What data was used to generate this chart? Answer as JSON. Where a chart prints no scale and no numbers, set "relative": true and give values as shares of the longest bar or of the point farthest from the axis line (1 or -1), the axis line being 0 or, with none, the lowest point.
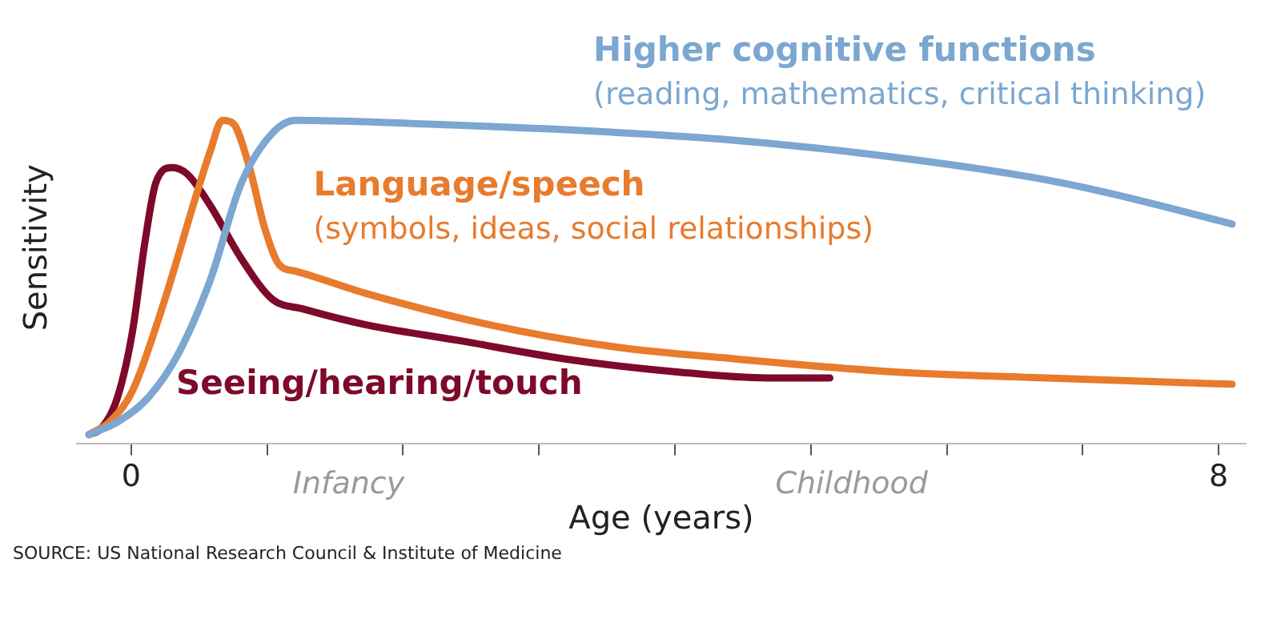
{
  "chart_data": {
    "type": "line",
    "relative": true,
    "xlabel": "Age (years)",
    "xlim": [
      -0.4,
      8.2
    ],
    "ylabel": "Sensitivity",
    "xticks": [
      0,
      {
        "value": 1,
        "label": null
      },
      {
        "value": 2,
        "label": null
      },
      {
        "value": 3,
        "label": null
      },
      {
        "value": 4,
        "label": null
      },
      {
        "value": 5,
        "label": null
      },
      {
        "value": 6,
        "label": null
      },
      {
        "value": 7,
        "label": null
      },
      8
    ],
    "grid": false,
    "legend": false,
    "marker": "none",
    "line_style": "solid",
    "tick_labels": "x",
    "series": [
      {
        "name": "Higher cognitive functions",
        "color": "#7ba7d0",
        "x": [
          -0.31,
          -0.1,
          0.13,
          0.35,
          0.58,
          0.81,
          1.04,
          1.21,
          2.06,
          3.2,
          4.34,
          5.48,
          6.61,
          7.18,
          8.1
        ],
        "values": [
          0,
          0.04,
          0.12,
          0.26,
          0.49,
          0.8,
          0.96,
          1,
          0.99,
          0.97,
          0.94,
          0.89,
          0.82,
          0.77,
          0.67
        ]
      },
      {
        "name": "Language/speech",
        "color": "#e87b2c",
        "x": [
          -0.31,
          -0.16,
          0.01,
          0.24,
          0.47,
          0.58,
          0.67,
          0.75,
          0.87,
          0.98,
          1.09,
          1.21,
          1.72,
          2.63,
          3.54,
          4.46,
          5.59,
          6.73,
          8.1
        ],
        "values": [
          0,
          0.04,
          0.14,
          0.42,
          0.75,
          0.9,
          1,
          0.99,
          0.85,
          0.66,
          0.54,
          0.52,
          0.45,
          0.35,
          0.28,
          0.24,
          0.2,
          0.18,
          0.16
        ]
      },
      {
        "name": "Seeing/hearing/touch",
        "color": "#7d0a2a",
        "x": [
          -0.31,
          -0.22,
          -0.1,
          0.01,
          0.1,
          0.18,
          0.3,
          0.41,
          0.58,
          0.81,
          1.04,
          1.26,
          1.72,
          2.4,
          3.2,
          4,
          4.68,
          5.14
        ],
        "values": [
          0,
          0.02,
          0.12,
          0.33,
          0.61,
          0.8,
          0.85,
          0.83,
          0.73,
          0.56,
          0.43,
          0.4,
          0.35,
          0.3,
          0.24,
          0.2,
          0.18,
          0.18
        ]
      }
    ],
    "annotations": [
      "(reading, mathematics, critical thinking)",
      "(symbols, ideas, social relationships)",
      "Infancy",
      "Childhood",
      "SOURCE: US National Research Council & Institute of Medicine"
    ]
  }
}
